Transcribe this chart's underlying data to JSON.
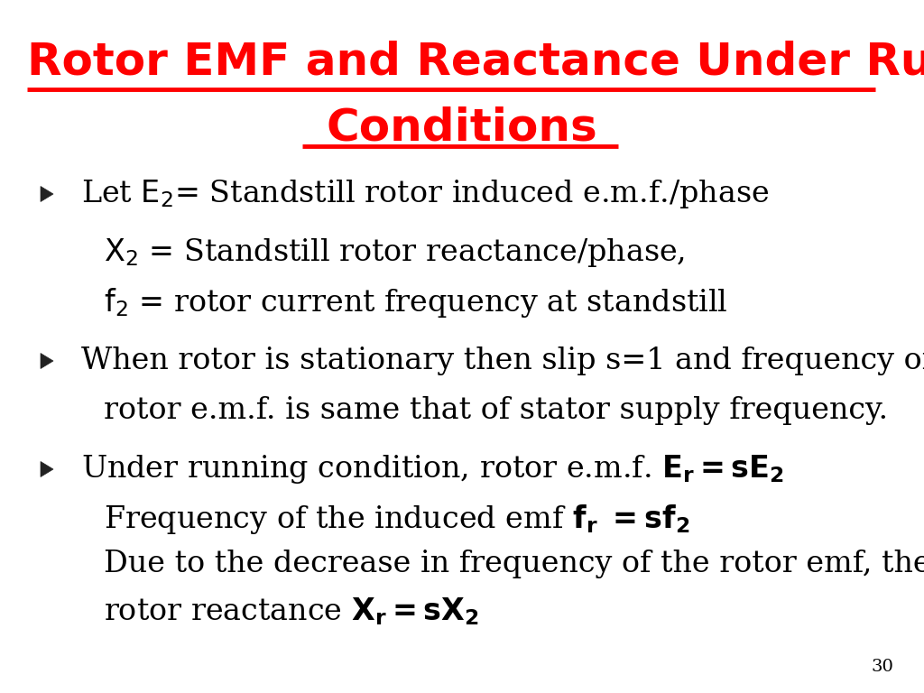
{
  "title_line1": "Rotor EMF and Reactance Under Running",
  "title_line2": "Conditions",
  "title_color": "#FF0000",
  "title_fontsize": 36,
  "body_fontsize": 24,
  "background_color": "#FFFFFF",
  "page_number": "30",
  "bullet_color": "#222222",
  "text_color": "#000000",
  "underline_color": "#FF0000",
  "page_num_fontsize": 14
}
